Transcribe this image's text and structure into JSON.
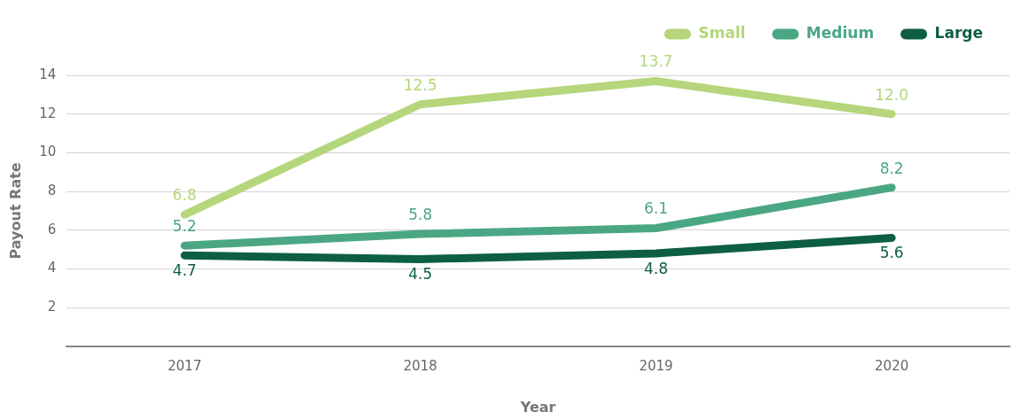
{
  "chart_data": {
    "type": "line",
    "xlabel": "Year",
    "ylabel": "Payout Rate",
    "categories": [
      "2017",
      "2018",
      "2019",
      "2020"
    ],
    "series": [
      {
        "name": "Small",
        "color": "#b5d67b",
        "values": [
          6.8,
          12.5,
          13.7,
          12.0
        ],
        "value_labels": [
          "6.8",
          "12.5",
          "13.7",
          "12.0"
        ]
      },
      {
        "name": "Medium",
        "color": "#4ba783",
        "values": [
          5.2,
          5.8,
          6.1,
          8.2
        ],
        "value_labels": [
          "5.2",
          "5.8",
          "6.1",
          "8.2"
        ]
      },
      {
        "name": "Large",
        "color": "#0d5e45",
        "values": [
          4.7,
          4.5,
          4.8,
          5.6
        ],
        "value_labels": [
          "4.7",
          "4.5",
          "4.8",
          "5.6"
        ]
      }
    ],
    "ylim": [
      0,
      14
    ],
    "yticks": [
      {
        "value": 0,
        "label": null
      },
      2,
      4,
      6,
      8,
      10,
      12,
      14
    ],
    "grid": "y",
    "legend": "top right",
    "marker": "none",
    "line_style": "solid"
  }
}
